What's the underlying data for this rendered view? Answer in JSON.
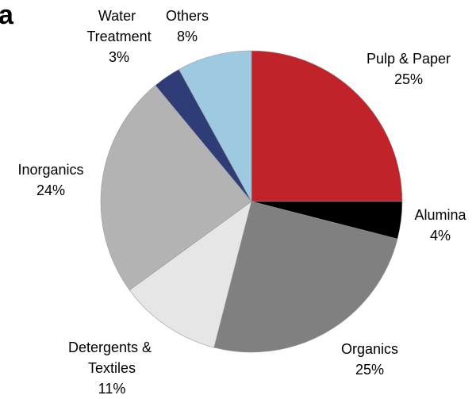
{
  "panel_label": "a",
  "chart_data": {
    "type": "pie",
    "categories": [
      "Pulp & Paper",
      "Alumina",
      "Organics",
      "Detergents & Textiles",
      "Inorganics",
      "Water Treatment",
      "Others"
    ],
    "values": [
      25,
      4,
      25,
      11,
      24,
      3,
      8
    ],
    "value_labels": [
      "25%",
      "4%",
      "25%",
      "11%",
      "24%",
      "3%",
      "8%"
    ],
    "colors": [
      "#c0242a",
      "#000000",
      "#808080",
      "#e6e6e6",
      "#b3b3b3",
      "#2e3c78",
      "#9ecae1"
    ]
  }
}
